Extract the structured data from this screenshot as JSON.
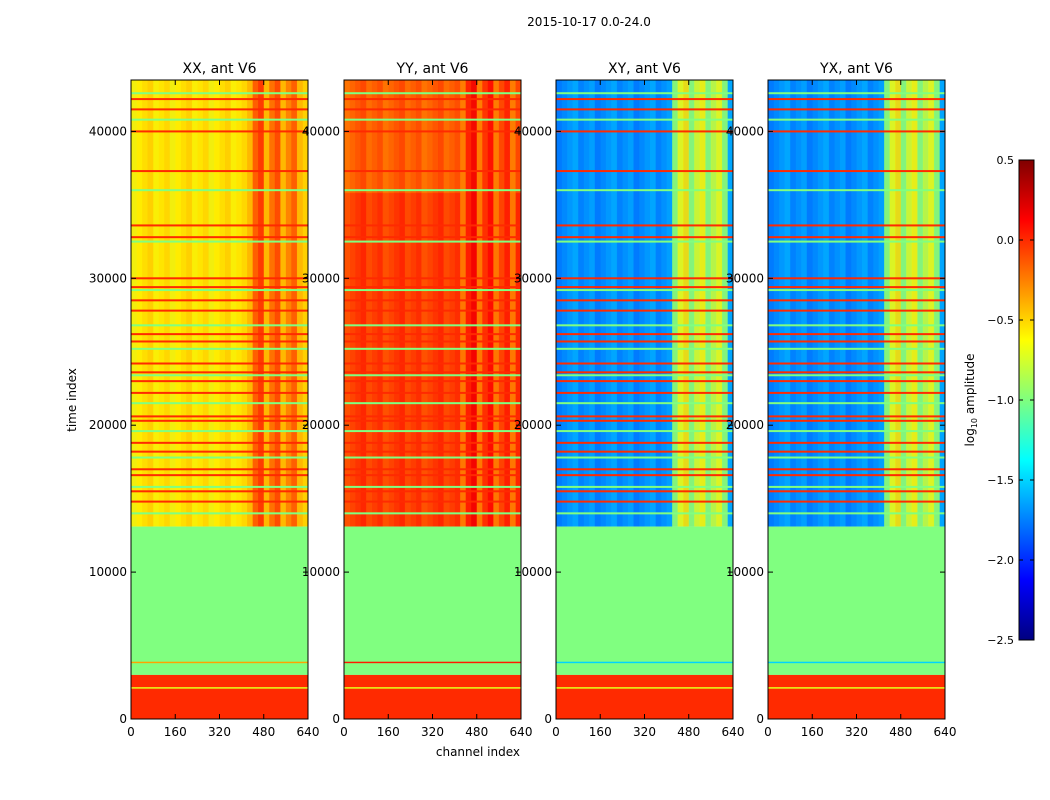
{
  "chart_data": {
    "type": "heatmap",
    "suptitle": "2015-10-17 0.0-24.0",
    "xlabel": "channel index",
    "ylabel": "time index",
    "xlim": [
      0,
      640
    ],
    "ylim": [
      0,
      43500
    ],
    "xticks": [
      0,
      160,
      320,
      480,
      640
    ],
    "yticks": [
      0,
      10000,
      20000,
      30000,
      40000
    ],
    "panels": [
      {
        "title": "XX, ant V6",
        "pol": "XX"
      },
      {
        "title": "YY, ant V6",
        "pol": "YY"
      },
      {
        "title": "XY, ant V6",
        "pol": "XY"
      },
      {
        "title": "YX, ant V6",
        "pol": "YX"
      }
    ],
    "colorbar": {
      "label": "log",
      "label_sub": "10",
      "label_rest": " amplitude",
      "vmin": -2.5,
      "vmax": 0.5,
      "ticks": [
        -2.5,
        -2.0,
        -1.5,
        -1.0,
        -0.5,
        0.0,
        0.5
      ],
      "colormap": "jet"
    },
    "bands": {
      "block_low": [
        0,
        3000,
        0.0
      ],
      "flagged": [
        3000,
        13100,
        -1.0
      ],
      "flagged_line_low": [
        3800,
        3900
      ],
      "line_low": 2100,
      "yy_step_time": 35800
    },
    "strong_channel_range": [
      405,
      605
    ],
    "mean_level": {
      "XX": -0.55,
      "YY": -0.15,
      "XY": -1.7,
      "YX": -1.7
    },
    "strong_level": {
      "XX": -0.05,
      "YY": 0.1,
      "XY": -0.6,
      "YX": -0.6
    },
    "line_times": [
      14000,
      14800,
      15500,
      15800,
      16600,
      17000,
      17800,
      18200,
      18800,
      19600,
      20300,
      20600,
      21500,
      22200,
      23000,
      23400,
      23600,
      24200,
      25200,
      25700,
      26200,
      26800,
      27800,
      28500,
      29200,
      29400,
      30000,
      32500,
      32800,
      33600,
      36000,
      37300,
      40000,
      40800,
      41500,
      42200,
      42600
    ]
  }
}
